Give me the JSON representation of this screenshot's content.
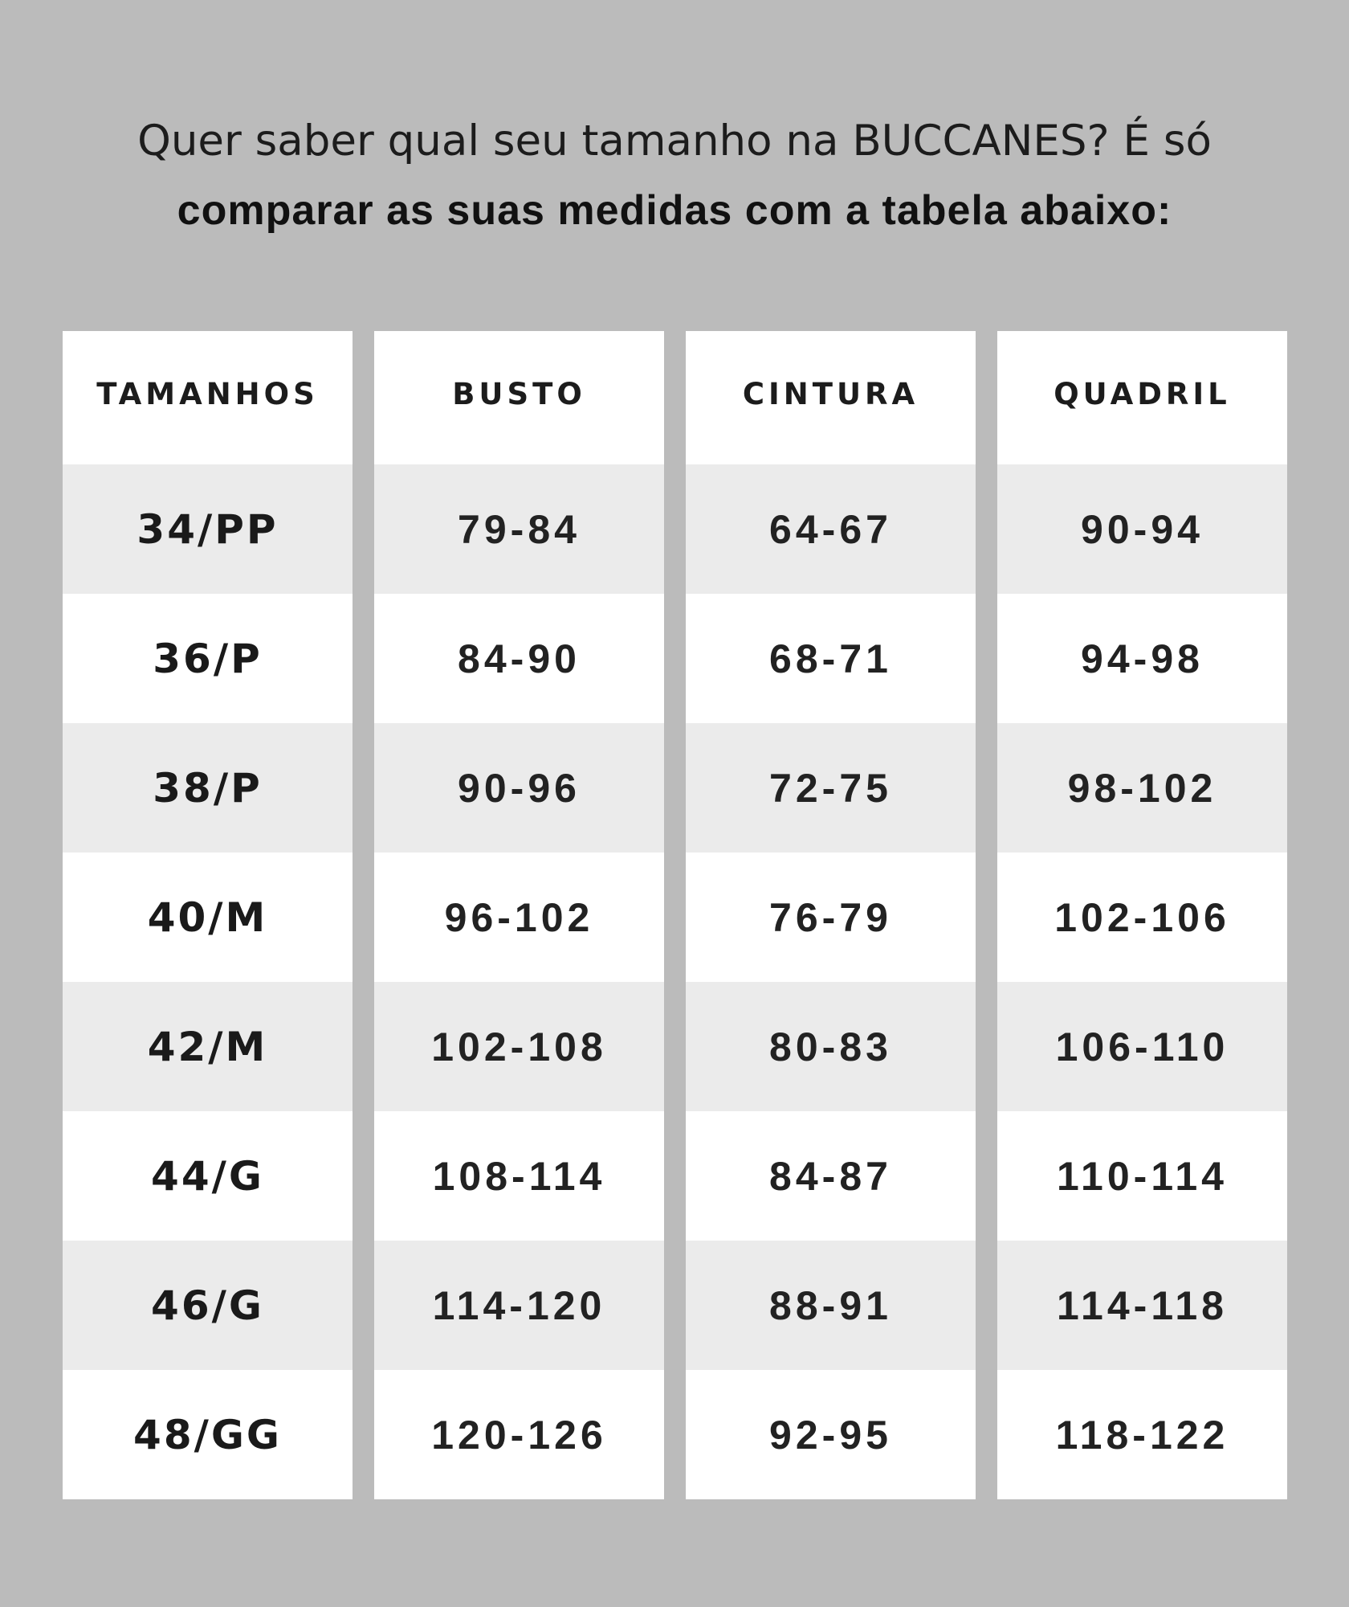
{
  "heading": {
    "line1": "Quer saber qual seu tamanho na BUCCANES? É só",
    "line2": "comparar as suas medidas com a tabela abaixo:"
  },
  "colors": {
    "background": "#bbbbbb",
    "shaded_row": "#ebebeb",
    "cell": "#ffffff",
    "text": "#222222"
  },
  "table": {
    "columns": [
      {
        "header": "TAMANHOS",
        "values": [
          "34/PP",
          "36/P",
          "38/P",
          "40/M",
          "42/M",
          "44/G",
          "46/G",
          "48/GG"
        ]
      },
      {
        "header": "BUSTO",
        "values": [
          "79-84",
          "84-90",
          "90-96",
          "96-102",
          "102-108",
          "108-114",
          "114-120",
          "120-126"
        ]
      },
      {
        "header": "CINTURA",
        "values": [
          "64-67",
          "68-71",
          "72-75",
          "76-79",
          "80-83",
          "84-87",
          "88-91",
          "92-95"
        ]
      },
      {
        "header": "QUADRIL",
        "values": [
          "90-94",
          "94-98",
          "98-102",
          "102-106",
          "106-110",
          "110-114",
          "114-118",
          "118-122"
        ]
      }
    ]
  }
}
